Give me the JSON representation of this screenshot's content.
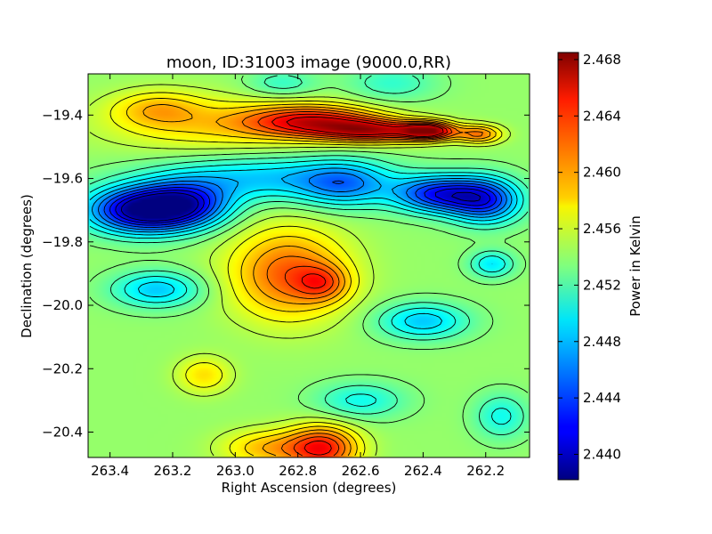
{
  "chart_data": {
    "type": "heatmap",
    "title": "moon, ID:31003 image (9000.0,RR)",
    "xlabel": "Right Ascension (degrees)",
    "ylabel": "Declination (degrees)",
    "colorbar_label": "Power in Kelvin",
    "colormap": "jet",
    "contours": true,
    "grid": false,
    "colorbar_placement": "right",
    "xlim": [
      263.47,
      262.06
    ],
    "ylim": [
      -20.48,
      -19.27
    ],
    "xticks": [
      {
        "value": 263.4,
        "label": "263.4"
      },
      {
        "value": 263.2,
        "label": "263.2"
      },
      {
        "value": 263.0,
        "label": "263.0"
      },
      {
        "value": 262.8,
        "label": "262.8"
      },
      {
        "value": 262.6,
        "label": "262.6"
      },
      {
        "value": 262.4,
        "label": "262.4"
      },
      {
        "value": 262.2,
        "label": "262.2"
      }
    ],
    "yticks": [
      {
        "value": -19.4,
        "label": "−19.4"
      },
      {
        "value": -19.6,
        "label": "−19.6"
      },
      {
        "value": -19.8,
        "label": "−19.8"
      },
      {
        "value": -20.0,
        "label": "−20.0"
      },
      {
        "value": -20.2,
        "label": "−20.2"
      },
      {
        "value": -20.4,
        "label": "−20.4"
      }
    ],
    "colorbar_range": [
      2.4382,
      2.4685
    ],
    "colorbar_ticks": [
      {
        "value": 2.44,
        "label": "2.440"
      },
      {
        "value": 2.444,
        "label": "2.444"
      },
      {
        "value": 2.448,
        "label": "2.448"
      },
      {
        "value": 2.452,
        "label": "2.452"
      },
      {
        "value": 2.456,
        "label": "2.456"
      },
      {
        "value": 2.46,
        "label": "2.460"
      },
      {
        "value": 2.464,
        "label": "2.464"
      },
      {
        "value": 2.468,
        "label": "2.468"
      }
    ],
    "baseline": 2.454,
    "features": [
      {
        "ra": 262.75,
        "dec": -19.42,
        "sra": 0.15,
        "sdec": 0.035,
        "amp": 0.01
      },
      {
        "ra": 262.55,
        "dec": -19.45,
        "sra": 0.12,
        "sdec": 0.025,
        "amp": 0.01
      },
      {
        "ra": 262.38,
        "dec": -19.45,
        "sra": 0.06,
        "sdec": 0.02,
        "amp": 0.012
      },
      {
        "ra": 262.22,
        "dec": -19.46,
        "sra": 0.05,
        "sdec": 0.02,
        "amp": 0.007
      },
      {
        "ra": 263.05,
        "dec": -19.43,
        "sra": 0.25,
        "sdec": 0.06,
        "amp": 0.004
      },
      {
        "ra": 263.25,
        "dec": -19.38,
        "sra": 0.1,
        "sdec": 0.04,
        "amp": 0.004
      },
      {
        "ra": 263.3,
        "dec": -19.7,
        "sra": 0.12,
        "sdec": 0.05,
        "amp": -0.015
      },
      {
        "ra": 263.15,
        "dec": -19.68,
        "sra": 0.1,
        "sdec": 0.05,
        "amp": -0.009
      },
      {
        "ra": 262.35,
        "dec": -19.65,
        "sra": 0.1,
        "sdec": 0.04,
        "amp": -0.011
      },
      {
        "ra": 262.2,
        "dec": -19.67,
        "sra": 0.08,
        "sdec": 0.05,
        "amp": -0.01
      },
      {
        "ra": 262.9,
        "dec": -19.6,
        "sra": 0.25,
        "sdec": 0.05,
        "amp": -0.006
      },
      {
        "ra": 262.65,
        "dec": -19.62,
        "sra": 0.1,
        "sdec": 0.05,
        "amp": -0.006
      },
      {
        "ra": 262.83,
        "dec": -19.9,
        "sra": 0.13,
        "sdec": 0.1,
        "amp": 0.008
      },
      {
        "ra": 262.72,
        "dec": -19.93,
        "sra": 0.06,
        "sdec": 0.04,
        "amp": 0.005
      },
      {
        "ra": 263.25,
        "dec": -19.95,
        "sra": 0.1,
        "sdec": 0.04,
        "amp": -0.006
      },
      {
        "ra": 262.4,
        "dec": -20.05,
        "sra": 0.1,
        "sdec": 0.04,
        "amp": -0.006
      },
      {
        "ra": 262.18,
        "dec": -19.87,
        "sra": 0.05,
        "sdec": 0.03,
        "amp": -0.005
      },
      {
        "ra": 262.72,
        "dec": -20.45,
        "sra": 0.08,
        "sdec": 0.05,
        "amp": 0.01
      },
      {
        "ra": 262.9,
        "dec": -20.45,
        "sra": 0.1,
        "sdec": 0.04,
        "amp": 0.005
      },
      {
        "ra": 263.1,
        "dec": -20.22,
        "sra": 0.06,
        "sdec": 0.04,
        "amp": 0.004
      },
      {
        "ra": 262.6,
        "dec": -20.3,
        "sra": 0.1,
        "sdec": 0.04,
        "amp": -0.004
      },
      {
        "ra": 262.15,
        "dec": -20.35,
        "sra": 0.06,
        "sdec": 0.05,
        "amp": -0.004
      },
      {
        "ra": 262.5,
        "dec": -19.3,
        "sra": 0.1,
        "sdec": 0.04,
        "amp": -0.003
      },
      {
        "ra": 262.85,
        "dec": -19.3,
        "sra": 0.08,
        "sdec": 0.03,
        "amp": -0.003
      }
    ]
  }
}
